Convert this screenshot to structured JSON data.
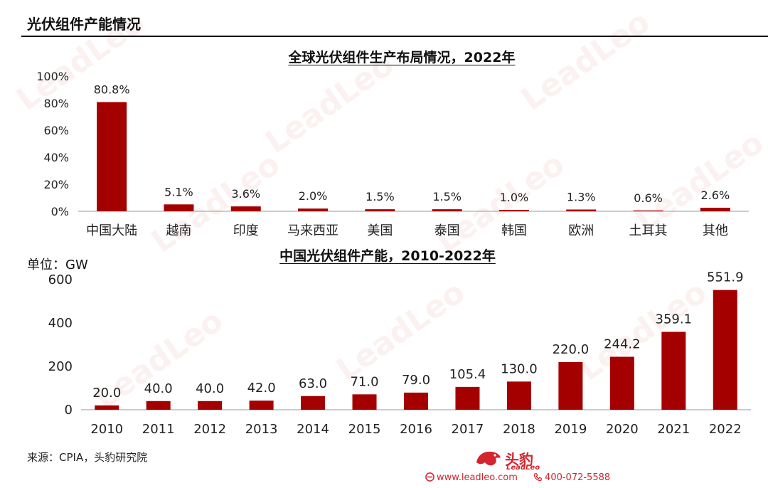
{
  "header": {
    "title": "光伏组件产能情况"
  },
  "colors": {
    "bar": "#a50000",
    "axis": "#999999",
    "brand": "#d4242d"
  },
  "chart_data": [
    {
      "type": "bar",
      "title": "全球光伏组件生产布局情况，2022年",
      "categories": [
        "中国大陆",
        "越南",
        "印度",
        "马来西亚",
        "美国",
        "泰国",
        "韩国",
        "欧洲",
        "土耳其",
        "其他"
      ],
      "values": [
        80.8,
        5.1,
        3.6,
        2.0,
        1.5,
        1.5,
        1.0,
        1.3,
        0.6,
        2.6
      ],
      "value_labels": [
        "80.8%",
        "5.1%",
        "3.6%",
        "2.0%",
        "1.5%",
        "1.5%",
        "1.0%",
        "1.3%",
        "0.6%",
        "2.6%"
      ],
      "yticks": [
        "0%",
        "20%",
        "40%",
        "60%",
        "80%",
        "100%"
      ],
      "ylim": [
        0,
        100
      ],
      "grid": false,
      "legend": "none"
    },
    {
      "type": "bar",
      "title": "中国光伏组件产能，2010-2022年",
      "unit_label": "单位：GW",
      "categories": [
        "2010",
        "2011",
        "2012",
        "2013",
        "2014",
        "2015",
        "2016",
        "2017",
        "2018",
        "2019",
        "2020",
        "2021",
        "2022"
      ],
      "values": [
        20.0,
        40.0,
        40.0,
        42.0,
        63.0,
        71.0,
        79.0,
        105.4,
        130.0,
        220.0,
        244.2,
        359.1,
        551.9
      ],
      "value_labels": [
        "20.0",
        "40.0",
        "40.0",
        "42.0",
        "63.0",
        "71.0",
        "79.0",
        "105.4",
        "130.0",
        "220.0",
        "244.2",
        "359.1",
        "551.9"
      ],
      "yticks": [
        "0",
        "200",
        "400",
        "600"
      ],
      "ylim": [
        0,
        600
      ],
      "grid": false,
      "legend": "none"
    }
  ],
  "footer": {
    "source": "来源：CPIA，头豹研究院",
    "logo_text": "头豹",
    "logo_sub": "LeadLeo",
    "website": "www.leadleo.com",
    "phone": "400-072-5588"
  }
}
